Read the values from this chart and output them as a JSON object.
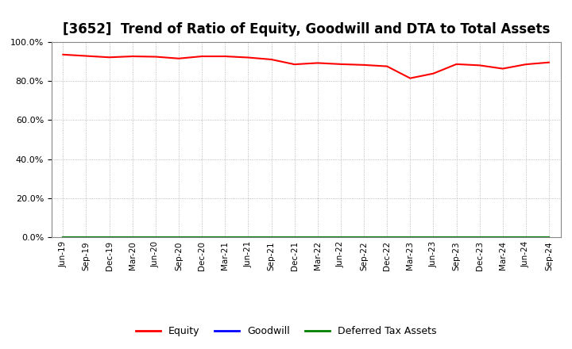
{
  "title": "[3652]  Trend of Ratio of Equity, Goodwill and DTA to Total Assets",
  "x_labels": [
    "Jun-19",
    "Sep-19",
    "Dec-19",
    "Mar-20",
    "Jun-20",
    "Sep-20",
    "Dec-20",
    "Mar-21",
    "Jun-21",
    "Sep-21",
    "Dec-21",
    "Mar-22",
    "Jun-22",
    "Sep-22",
    "Dec-22",
    "Mar-23",
    "Jun-23",
    "Sep-23",
    "Dec-23",
    "Mar-24",
    "Jun-24",
    "Sep-24"
  ],
  "equity": [
    0.935,
    0.928,
    0.921,
    0.926,
    0.924,
    0.915,
    0.926,
    0.926,
    0.92,
    0.91,
    0.885,
    0.892,
    0.886,
    0.882,
    0.875,
    0.814,
    0.838,
    0.886,
    0.88,
    0.863,
    0.885,
    0.895
  ],
  "goodwill": [
    0.0,
    0.0,
    0.0,
    0.0,
    0.0,
    0.0,
    0.0,
    0.0,
    0.0,
    0.0,
    0.0,
    0.0,
    0.0,
    0.0,
    0.0,
    0.0,
    0.0,
    0.0,
    0.0,
    0.0,
    0.0,
    0.0
  ],
  "dta": [
    0.0,
    0.0,
    0.0,
    0.0,
    0.0,
    0.0,
    0.0,
    0.0,
    0.0,
    0.0,
    0.0,
    0.0,
    0.0,
    0.0,
    0.0,
    0.0,
    0.0,
    0.0,
    0.0,
    0.0,
    0.0,
    0.0
  ],
  "equity_color": "#FF0000",
  "goodwill_color": "#0000FF",
  "dta_color": "#008000",
  "ylim": [
    0.0,
    1.0
  ],
  "yticks": [
    0.0,
    0.2,
    0.4,
    0.6,
    0.8,
    1.0
  ],
  "background_color": "#FFFFFF",
  "plot_bg_color": "#FFFFFF",
  "grid_color": "#AAAAAA",
  "title_fontsize": 12,
  "legend_labels": [
    "Equity",
    "Goodwill",
    "Deferred Tax Assets"
  ],
  "legend_colors": [
    "#FF0000",
    "#0000FF",
    "#008000"
  ]
}
